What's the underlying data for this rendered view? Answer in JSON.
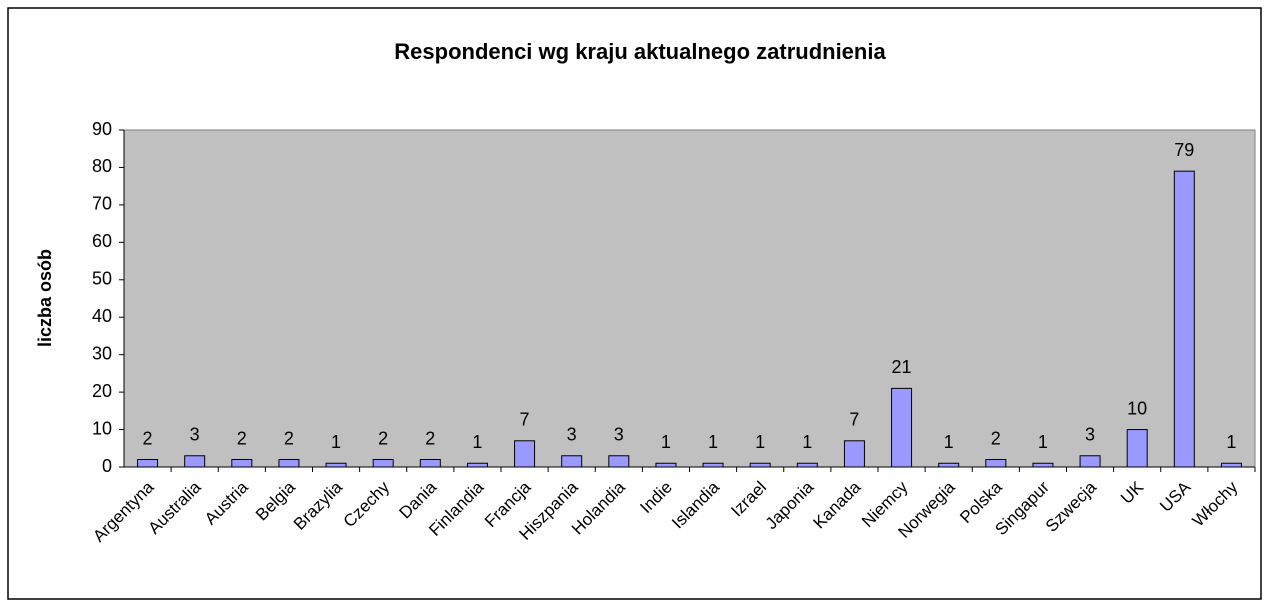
{
  "chart_data": {
    "type": "bar",
    "title": "Respondenci wg kraju aktualnego zatrudnienia",
    "y_label": "liczba osób",
    "categories": [
      "Argentyna",
      "Australia",
      "Austria",
      "Belgia",
      "Brazylia",
      "Czechy",
      "Dania",
      "Finlandia",
      "Francja",
      "Hiszpania",
      "Holandia",
      "Indie",
      "Islandia",
      "Izrael",
      "Japonia",
      "Kanada",
      "Niemcy",
      "Norwegia",
      "Polska",
      "Singapur",
      "Szwecja",
      "UK",
      "USA",
      "Włochy"
    ],
    "values": [
      2,
      3,
      2,
      2,
      1,
      2,
      2,
      1,
      7,
      3,
      3,
      1,
      1,
      1,
      1,
      7,
      21,
      1,
      2,
      1,
      3,
      10,
      79,
      1
    ],
    "color": "#9999ff",
    "ylim": [
      0,
      90
    ],
    "yticks": [
      0,
      10,
      20,
      30,
      40,
      50,
      60,
      70,
      80,
      90
    ],
    "grid": false,
    "plot_background": "#c0c0c0"
  }
}
